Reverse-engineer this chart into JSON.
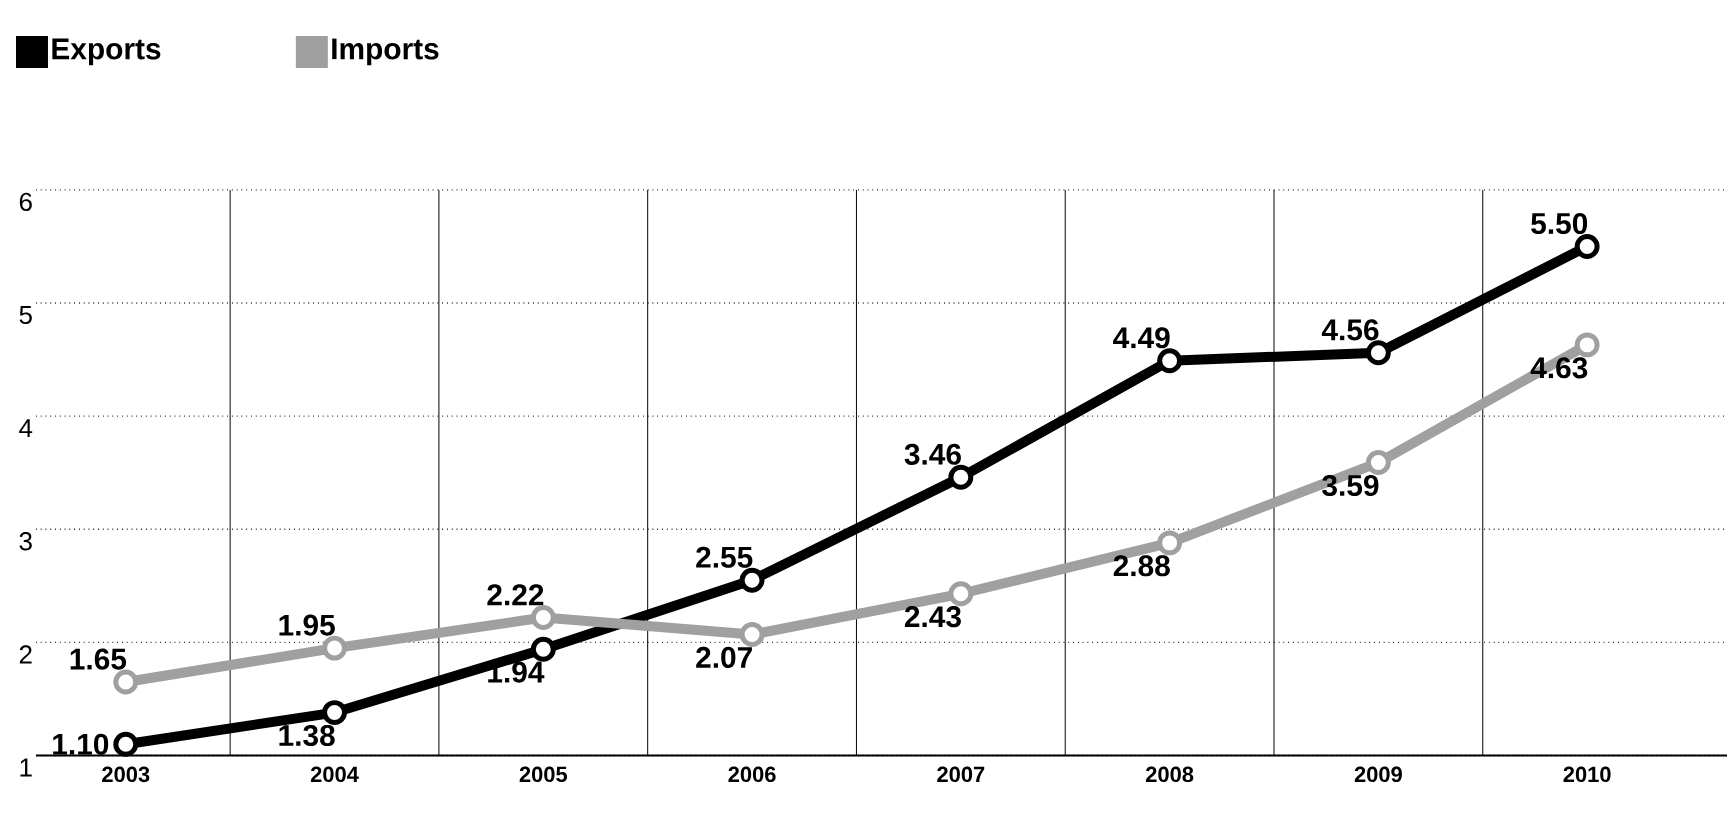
{
  "chart_data": {
    "type": "line",
    "categories": [
      "2003",
      "2004",
      "2005",
      "2006",
      "2007",
      "2008",
      "2009",
      "2010"
    ],
    "series": [
      {
        "name": "Exports",
        "color": "#000000",
        "values": [
          1.1,
          1.38,
          1.94,
          2.55,
          3.46,
          4.49,
          4.56,
          5.5
        ],
        "value_labels": [
          "1.10",
          "1.38",
          "1.94",
          "2.55",
          "3.46",
          "4.49",
          "4.56",
          "5.50"
        ]
      },
      {
        "name": "Imports",
        "color": "#a0a0a0",
        "values": [
          1.65,
          1.95,
          2.22,
          2.07,
          2.43,
          2.88,
          3.59,
          4.63
        ],
        "value_labels": [
          "1.65",
          "1.95",
          "2.22",
          "2.07",
          "2.43",
          "2.88",
          "3.59",
          "4.63"
        ]
      }
    ],
    "ylim": [
      1,
      6
    ],
    "yticks": [
      1,
      2,
      3,
      4,
      5,
      6
    ],
    "grid": true,
    "legend": "top left",
    "marker": "circle",
    "line_style": "solid"
  }
}
